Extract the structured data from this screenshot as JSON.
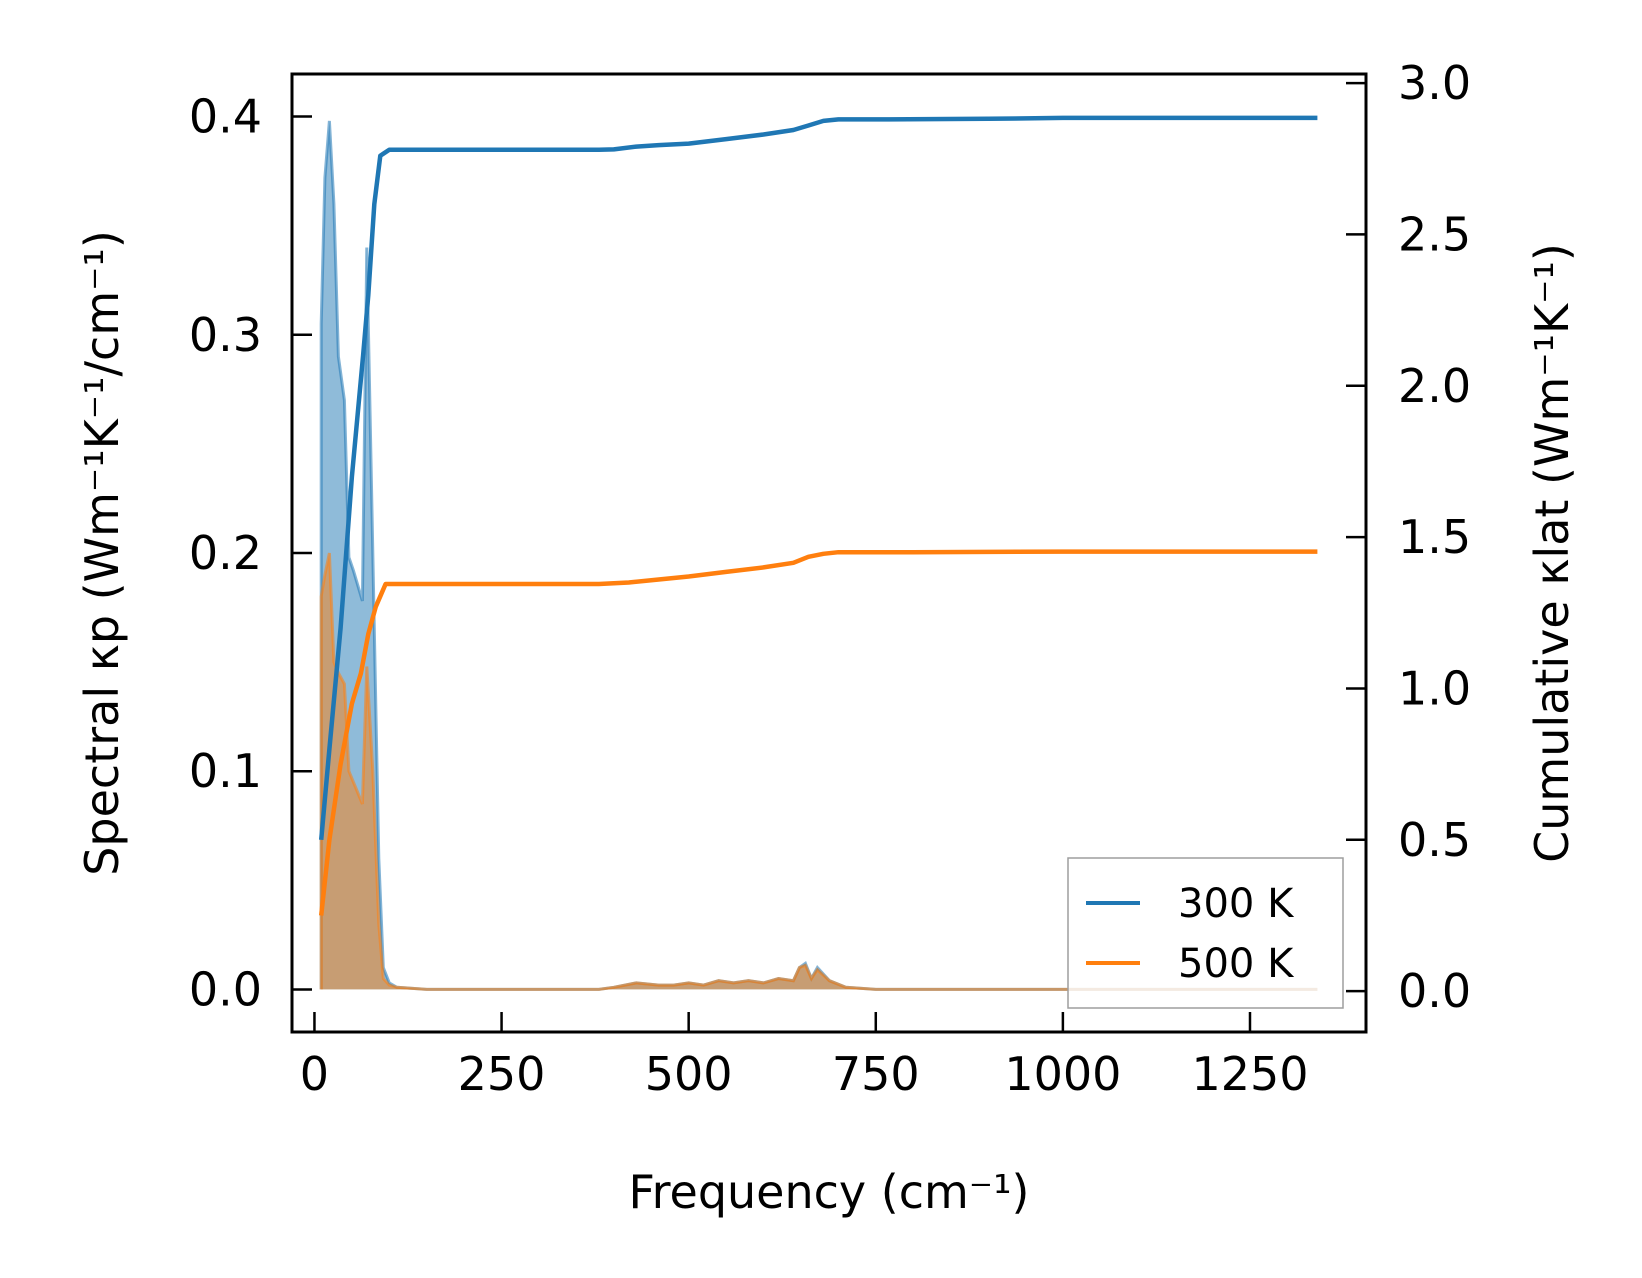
{
  "chart_data": {
    "type": "line",
    "xlabel": "Frequency (cm⁻¹)",
    "ylabel_left": "Spectral κp (Wm⁻¹K⁻¹/cm⁻¹)",
    "ylabel_right": "Cumulative κlat (Wm⁻¹K⁻¹)",
    "xlim": [
      -30,
      1405
    ],
    "xticks": [
      0,
      250,
      500,
      750,
      1000,
      1250
    ],
    "ylim_left": [
      -0.0195,
      0.4195
    ],
    "yticks_left": [
      0.0,
      0.1,
      0.2,
      0.3,
      0.4
    ],
    "ylim_right": [
      -0.135,
      3.03
    ],
    "yticks_right": [
      0.0,
      0.5,
      1.0,
      1.5,
      2.0,
      2.5,
      3.0
    ],
    "legend": {
      "location": "lower-right",
      "entries": [
        "300 K",
        "500 K"
      ]
    },
    "colors": {
      "300K": "#1f77b4",
      "500K": "#ff7f0e"
    },
    "series": [
      {
        "name": "300 K",
        "axis": "left",
        "kind": "spectral-fill",
        "points": [
          [
            9,
            0.0
          ],
          [
            9,
            0.305
          ],
          [
            14,
            0.372
          ],
          [
            20,
            0.398
          ],
          [
            26,
            0.36
          ],
          [
            32,
            0.29
          ],
          [
            40,
            0.27
          ],
          [
            46,
            0.198
          ],
          [
            52,
            0.192
          ],
          [
            58,
            0.185
          ],
          [
            64,
            0.178
          ],
          [
            70,
            0.34
          ],
          [
            78,
            0.2
          ],
          [
            86,
            0.06
          ],
          [
            92,
            0.01
          ],
          [
            100,
            0.003
          ],
          [
            110,
            0.001
          ],
          [
            150,
            0.0
          ],
          [
            380,
            0.0
          ],
          [
            400,
            0.001
          ],
          [
            430,
            0.003
          ],
          [
            460,
            0.002
          ],
          [
            480,
            0.002
          ],
          [
            500,
            0.003
          ],
          [
            520,
            0.002
          ],
          [
            540,
            0.004
          ],
          [
            560,
            0.003
          ],
          [
            580,
            0.004
          ],
          [
            600,
            0.003
          ],
          [
            620,
            0.005
          ],
          [
            640,
            0.004
          ],
          [
            648,
            0.01
          ],
          [
            656,
            0.012
          ],
          [
            664,
            0.005
          ],
          [
            672,
            0.01
          ],
          [
            688,
            0.004
          ],
          [
            710,
            0.001
          ],
          [
            750,
            0.0
          ],
          [
            900,
            0.0
          ],
          [
            1000,
            0.0
          ],
          [
            1340,
            0.0
          ]
        ]
      },
      {
        "name": "500 K",
        "axis": "left",
        "kind": "spectral-fill",
        "points": [
          [
            9,
            0.0
          ],
          [
            9,
            0.18
          ],
          [
            14,
            0.19
          ],
          [
            20,
            0.2
          ],
          [
            26,
            0.15
          ],
          [
            32,
            0.145
          ],
          [
            40,
            0.14
          ],
          [
            46,
            0.1
          ],
          [
            52,
            0.095
          ],
          [
            58,
            0.09
          ],
          [
            64,
            0.085
          ],
          [
            70,
            0.148
          ],
          [
            78,
            0.1
          ],
          [
            86,
            0.03
          ],
          [
            92,
            0.005
          ],
          [
            100,
            0.002
          ],
          [
            110,
            0.001
          ],
          [
            150,
            0.0
          ],
          [
            380,
            0.0
          ],
          [
            400,
            0.001
          ],
          [
            430,
            0.003
          ],
          [
            460,
            0.002
          ],
          [
            480,
            0.002
          ],
          [
            500,
            0.003
          ],
          [
            520,
            0.002
          ],
          [
            540,
            0.004
          ],
          [
            560,
            0.003
          ],
          [
            580,
            0.004
          ],
          [
            600,
            0.003
          ],
          [
            620,
            0.005
          ],
          [
            640,
            0.004
          ],
          [
            648,
            0.01
          ],
          [
            656,
            0.011
          ],
          [
            664,
            0.005
          ],
          [
            672,
            0.009
          ],
          [
            688,
            0.004
          ],
          [
            710,
            0.001
          ],
          [
            750,
            0.0
          ],
          [
            900,
            0.0
          ],
          [
            1000,
            0.0
          ],
          [
            1340,
            0.0
          ]
        ]
      },
      {
        "name": "300 K",
        "axis": "right",
        "kind": "cumulative-line",
        "points": [
          [
            9,
            0.5
          ],
          [
            20,
            0.8
          ],
          [
            35,
            1.2
          ],
          [
            50,
            1.7
          ],
          [
            65,
            2.1
          ],
          [
            72,
            2.3
          ],
          [
            80,
            2.6
          ],
          [
            88,
            2.76
          ],
          [
            100,
            2.78
          ],
          [
            150,
            2.78
          ],
          [
            380,
            2.78
          ],
          [
            400,
            2.781
          ],
          [
            430,
            2.79
          ],
          [
            460,
            2.795
          ],
          [
            500,
            2.8
          ],
          [
            550,
            2.815
          ],
          [
            600,
            2.83
          ],
          [
            640,
            2.845
          ],
          [
            660,
            2.86
          ],
          [
            680,
            2.875
          ],
          [
            700,
            2.88
          ],
          [
            750,
            2.88
          ],
          [
            900,
            2.882
          ],
          [
            1000,
            2.885
          ],
          [
            1340,
            2.885
          ]
        ]
      },
      {
        "name": "500 K",
        "axis": "right",
        "kind": "cumulative-line",
        "points": [
          [
            9,
            0.25
          ],
          [
            20,
            0.5
          ],
          [
            35,
            0.75
          ],
          [
            50,
            0.95
          ],
          [
            62,
            1.05
          ],
          [
            72,
            1.18
          ],
          [
            82,
            1.27
          ],
          [
            95,
            1.345
          ],
          [
            150,
            1.345
          ],
          [
            380,
            1.345
          ],
          [
            420,
            1.35
          ],
          [
            460,
            1.36
          ],
          [
            500,
            1.37
          ],
          [
            550,
            1.385
          ],
          [
            600,
            1.4
          ],
          [
            640,
            1.415
          ],
          [
            660,
            1.435
          ],
          [
            680,
            1.445
          ],
          [
            700,
            1.45
          ],
          [
            800,
            1.45
          ],
          [
            1000,
            1.452
          ],
          [
            1340,
            1.452
          ]
        ]
      }
    ]
  }
}
